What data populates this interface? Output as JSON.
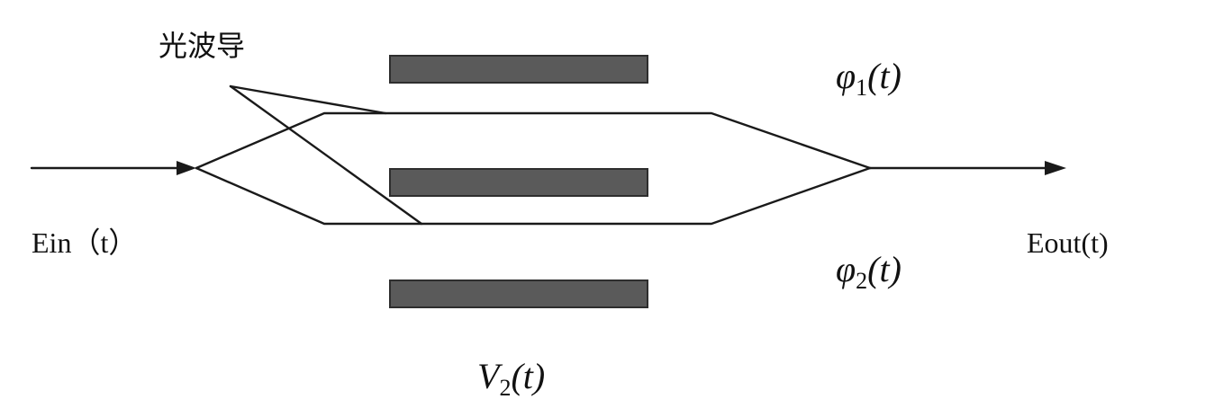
{
  "waveguide_label": "光波导",
  "input_label": "Ein（t）",
  "output_label": "Eout(t)",
  "phase_upper": {
    "symbol": "φ",
    "sub": "1",
    "arg": "(t)"
  },
  "phase_lower": {
    "symbol": "φ",
    "sub": "2",
    "arg": "(t)"
  },
  "voltage": {
    "symbol": "V",
    "sub": "2",
    "arg": "(t)"
  },
  "colors": {
    "ink": "#1a1a1a",
    "electrode": "#5a5a5a"
  }
}
